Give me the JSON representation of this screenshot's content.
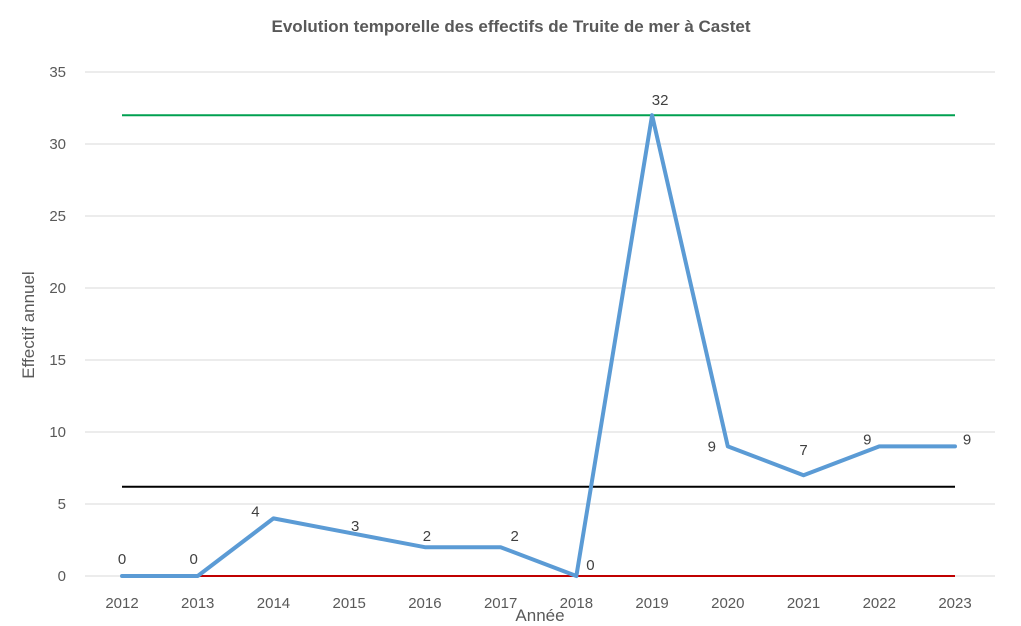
{
  "chart_data": {
    "type": "line",
    "title": "Evolution temporelle des effectifs de Truite de mer à Castet",
    "xlabel": "Année",
    "ylabel": "Effectif annuel",
    "ylim": [
      0,
      35
    ],
    "yticks": [
      0,
      5,
      10,
      15,
      20,
      25,
      30,
      35
    ],
    "categories": [
      "2012",
      "2013",
      "2014",
      "2015",
      "2016",
      "2017",
      "2018",
      "2019",
      "2020",
      "2021",
      "2022",
      "2023"
    ],
    "series": [
      {
        "values": [
          0,
          0,
          4,
          3,
          2,
          2,
          0,
          32,
          9,
          7,
          9,
          9
        ],
        "color": "#5B9BD5",
        "data_labels": true
      }
    ],
    "reference_lines": [
      {
        "value": 32,
        "color": "#00A050"
      },
      {
        "value": 6.2,
        "color": "#000000"
      },
      {
        "value": 0,
        "color": "#C00000"
      }
    ],
    "grid": true,
    "legend": "none"
  }
}
